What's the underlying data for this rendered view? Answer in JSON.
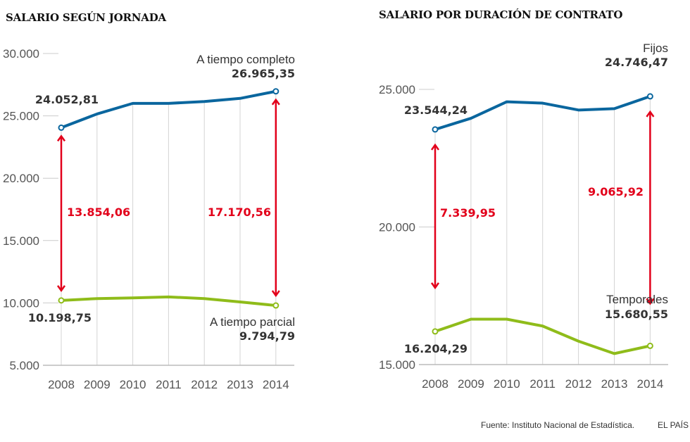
{
  "colors": {
    "primary": "#0a669e",
    "secondary": "#8fbc1a",
    "difference": "#e2001a",
    "grid": "#d4d4d4",
    "text": "#333333"
  },
  "footer": {
    "source": "Fuente: Instituto Nacional de Estadística.",
    "brand": "EL PAÍS"
  },
  "chart_data": [
    {
      "type": "line",
      "title": "SALARIO SEGÚN JORNADA",
      "xlabel": "",
      "ylabel": "",
      "x": [
        "2008",
        "2009",
        "2010",
        "2011",
        "2012",
        "2013",
        "2014"
      ],
      "ylim": [
        5000,
        30000
      ],
      "yticks": [
        5000,
        10000,
        15000,
        20000,
        25000,
        30000
      ],
      "ytick_labels": [
        "5.000",
        "10.000",
        "15.000",
        "20.000",
        "25.000",
        "30.000"
      ],
      "grid": "vertical",
      "series": [
        {
          "name": "A tiempo completo",
          "values": [
            24052.81,
            25150,
            26000,
            26000,
            26150,
            26400,
            26965.35
          ],
          "start_label": "24.052,81",
          "end_label": "26.965,35"
        },
        {
          "name": "A tiempo parcial",
          "values": [
            10198.75,
            10350,
            10400,
            10480,
            10350,
            10080,
            9794.79
          ],
          "start_label": "10.198,75",
          "end_label": "9.794,79"
        }
      ],
      "annotations": [
        {
          "x": "2008",
          "label": "13.854,06",
          "from": 10198.75,
          "to": 24052.81
        },
        {
          "x": "2014",
          "label": "17.170,56",
          "from": 9794.79,
          "to": 26965.35
        }
      ]
    },
    {
      "type": "line",
      "title": "SALARIO POR DURACIÓN DE CONTRATO",
      "xlabel": "",
      "ylabel": "",
      "x": [
        "2008",
        "2009",
        "2010",
        "2011",
        "2012",
        "2013",
        "2014"
      ],
      "ylim": [
        15000,
        25000
      ],
      "yticks": [
        15000,
        20000,
        25000
      ],
      "ytick_labels": [
        "15.000",
        "20.000",
        "25.000"
      ],
      "grid": "vertical",
      "series": [
        {
          "name": "Fijos",
          "values": [
            23544.24,
            23950,
            24550,
            24500,
            24250,
            24300,
            24746.47
          ],
          "start_label": "23.544,24",
          "end_label": "24.746,47"
        },
        {
          "name": "Temporales",
          "values": [
            16204.29,
            16650,
            16650,
            16400,
            15850,
            15400,
            15680.55
          ],
          "start_label": "16.204,29",
          "end_label": "15.680,55"
        }
      ],
      "annotations": [
        {
          "x": "2008",
          "label": "7.339,95",
          "from": 16204.29,
          "to": 23544.24
        },
        {
          "x": "2014",
          "label": "9.065,92",
          "from": 15680.55,
          "to": 24746.47
        }
      ]
    }
  ]
}
